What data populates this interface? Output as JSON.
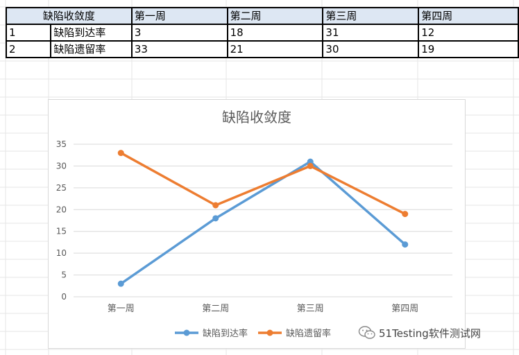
{
  "table": {
    "header": [
      "缺陷收敛度",
      "第一周",
      "第二周",
      "第三周",
      "第四周"
    ],
    "rows": [
      {
        "index": "1",
        "name": "缺陷到达率",
        "values": [
          "3",
          "18",
          "31",
          "12"
        ]
      },
      {
        "index": "2",
        "name": "缺陷遗留率",
        "values": [
          "33",
          "21",
          "30",
          "19"
        ]
      }
    ]
  },
  "chart_data": {
    "type": "line",
    "title": "缺陷收敛度",
    "categories": [
      "第一周",
      "第二周",
      "第三周",
      "第四周"
    ],
    "series": [
      {
        "name": "缺陷到达率",
        "values": [
          3,
          18,
          31,
          12
        ],
        "color": "#5b9bd5"
      },
      {
        "name": "缺陷遗留率",
        "values": [
          33,
          21,
          30,
          19
        ],
        "color": "#ed7d31"
      }
    ],
    "ylim": [
      0,
      35
    ],
    "yticks": [
      0,
      5,
      10,
      15,
      20,
      25,
      30,
      35
    ],
    "grid": true,
    "legend": "bottom"
  },
  "watermark": {
    "text": "51Testing软件测试网"
  },
  "colors": {
    "header_fill": "#dde7f3",
    "grid_line": "#d9d9d9",
    "axis_text": "#595959",
    "title_text": "#595959"
  }
}
